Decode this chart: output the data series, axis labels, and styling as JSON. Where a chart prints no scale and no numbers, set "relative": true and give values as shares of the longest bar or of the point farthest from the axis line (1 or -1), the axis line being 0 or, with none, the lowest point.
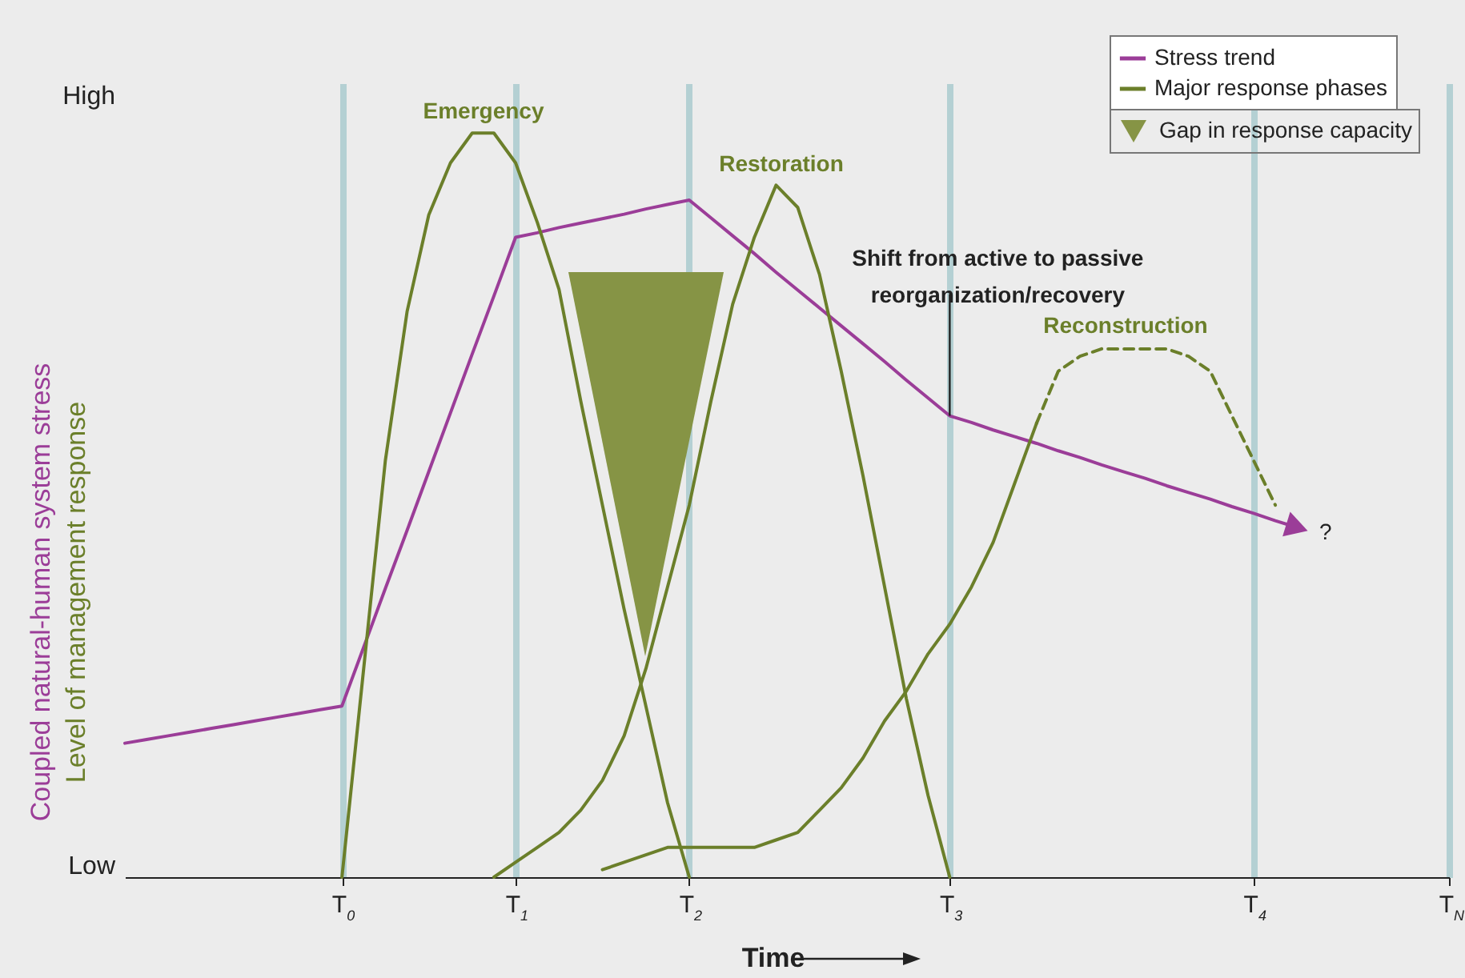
{
  "chart_data": {
    "type": "line",
    "xlabel": "Time",
    "ylabel": "Coupled natural-human system stress\nLevel of management response",
    "relative": true,
    "categories": [
      null,
      null,
      null,
      null,
      null,
      null,
      null,
      null,
      null,
      null,
      "T$_{0}$",
      null,
      null,
      null,
      null,
      null,
      null,
      null,
      "T$_{1}$",
      null,
      null,
      null,
      null,
      null,
      null,
      null,
      "T$_{2}$",
      null,
      null,
      null,
      null,
      null,
      null,
      null,
      null,
      null,
      null,
      null,
      "T$_{3}$",
      null,
      null,
      null,
      null,
      null,
      null,
      null,
      null,
      null,
      null,
      null,
      null,
      null,
      "T$_{4}$",
      null,
      null,
      null,
      null,
      null,
      null,
      null,
      null,
      "T$_{N}$"
    ],
    "grid": "x",
    "legend": "top right",
    "marker": "none",
    "series": [
      {
        "name": "Stress trend",
        "color": "#9b3d98",
        "values": [
          0.18,
          0.185,
          0.19,
          0.195,
          0.2,
          0.205,
          0.21,
          0.215,
          0.22,
          0.225,
          0.23,
          0.309,
          0.388,
          0.466,
          0.545,
          0.624,
          0.703,
          0.781,
          0.86,
          0.866,
          0.873,
          0.879,
          0.885,
          0.891,
          0.898,
          0.904,
          0.91,
          0.886,
          0.862,
          0.838,
          0.813,
          0.789,
          0.765,
          0.741,
          0.717,
          0.693,
          0.668,
          0.644,
          0.62,
          0.611,
          0.601,
          0.592,
          0.583,
          0.573,
          0.564,
          0.554,
          0.545,
          0.536,
          0.526,
          0.517,
          0.508,
          0.498,
          0.489,
          0.479,
          0.47,
          null,
          null,
          null,
          null,
          null,
          null,
          null
        ]
      },
      {
        "name": "Major response phases",
        "color": "#6b7f2a",
        "values": [
          null,
          null,
          null,
          null,
          null,
          null,
          null,
          null,
          null,
          null,
          0,
          0.28,
          0.56,
          0.76,
          0.89,
          0.96,
          1,
          1,
          0.96,
          0.88,
          0.79,
          0.64,
          0.5,
          0.36,
          0.23,
          0.1,
          0,
          null,
          null,
          null,
          null,
          null,
          null,
          null,
          null,
          null,
          null,
          null,
          null,
          null,
          null,
          null,
          null,
          null,
          null,
          null,
          null,
          null,
          null,
          null,
          null,
          null,
          null,
          null,
          null,
          null,
          null,
          null,
          null,
          null,
          null,
          null
        ]
      },
      {
        "color": "#6b7f2a",
        "values": [
          null,
          null,
          null,
          null,
          null,
          null,
          null,
          null,
          null,
          null,
          null,
          null,
          null,
          null,
          null,
          null,
          null,
          0,
          0.02,
          0.04,
          0.06,
          0.09,
          0.13,
          0.19,
          0.28,
          0.39,
          0.5,
          0.64,
          0.77,
          0.86,
          0.93,
          0.9,
          0.81,
          0.68,
          0.54,
          0.39,
          0.24,
          0.11,
          0,
          null,
          null,
          null,
          null,
          null,
          null,
          null,
          null,
          null,
          null,
          null,
          null,
          null,
          null,
          null,
          null,
          null,
          null,
          null,
          null,
          null,
          null,
          null
        ]
      },
      {
        "color": "#6b7f2a",
        "values": [
          null,
          null,
          null,
          null,
          null,
          null,
          null,
          null,
          null,
          null,
          null,
          null,
          null,
          null,
          null,
          null,
          null,
          null,
          null,
          null,
          null,
          null,
          0.01,
          0.02,
          0.03,
          0.04,
          0.04,
          0.04,
          0.04,
          0.04,
          0.05,
          0.06,
          0.09,
          0.12,
          0.16,
          0.21,
          0.25,
          0.3,
          0.34,
          0.39,
          0.45,
          0.53,
          0.61,
          null,
          null,
          null,
          null,
          null,
          null,
          null,
          null,
          null,
          null,
          null,
          null,
          null,
          null,
          null,
          null,
          null,
          null,
          null
        ]
      },
      {
        "color": "#6b7f2a",
        "line_style": "dashed",
        "values": [
          null,
          null,
          null,
          null,
          null,
          null,
          null,
          null,
          null,
          null,
          null,
          null,
          null,
          null,
          null,
          null,
          null,
          null,
          null,
          null,
          null,
          null,
          null,
          null,
          null,
          null,
          null,
          null,
          null,
          null,
          null,
          null,
          null,
          null,
          null,
          null,
          null,
          null,
          null,
          null,
          null,
          null,
          0.61,
          0.68,
          0.7,
          0.71,
          0.71,
          0.71,
          0.71,
          0.7,
          0.68,
          0.62,
          0.56,
          0.5,
          null,
          null,
          null,
          null,
          null,
          null,
          null,
          null
        ]
      }
    ],
    "annotations": [
      "High",
      "Low",
      "Emergency",
      "Restoration",
      "Reconstruction",
      {
        "text": "Shift from active to passive\nreorganization/recovery",
        "x": "T$_{3}$",
        "y": 0.62
      },
      "?",
      "Gap in response capacity"
    ]
  }
}
